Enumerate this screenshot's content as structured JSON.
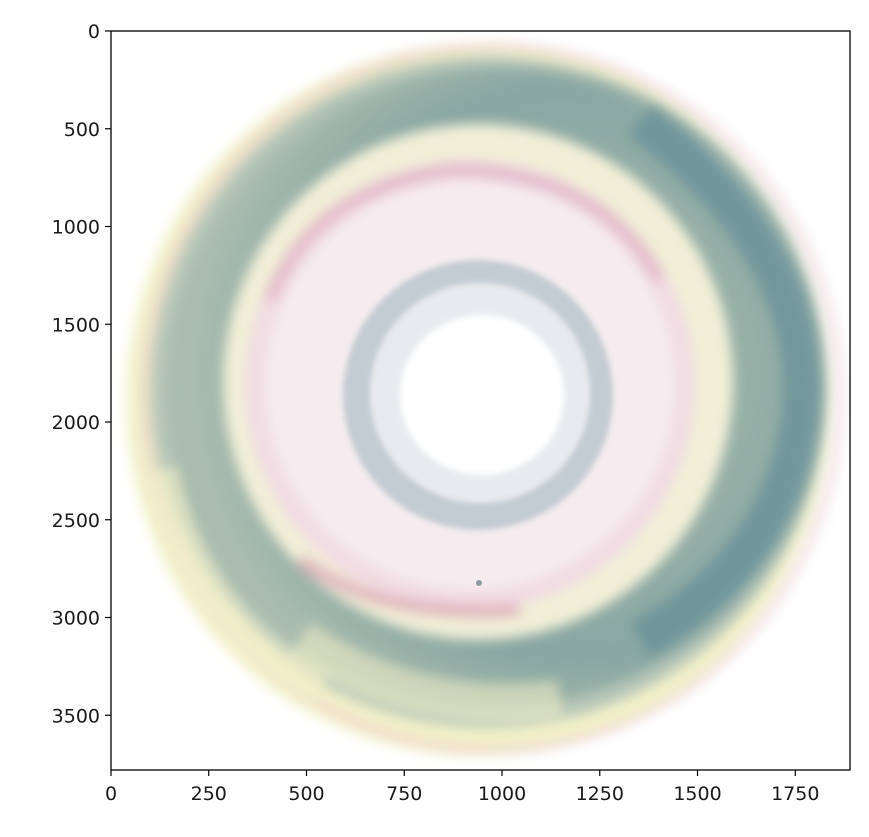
{
  "chart_data": {
    "type": "image",
    "title": "",
    "xlabel": "",
    "ylabel": "",
    "xlim": [
      0,
      1890
    ],
    "ylim": [
      3780,
      0
    ],
    "x_ticks": [
      0,
      250,
      500,
      750,
      1000,
      1250,
      1500,
      1750
    ],
    "y_ticks": [
      0,
      500,
      1000,
      1500,
      2000,
      2500,
      3000,
      3500
    ],
    "x_tick_labels": [
      "0",
      "250",
      "500",
      "750",
      "1000",
      "1250",
      "1500",
      "1750"
    ],
    "y_tick_labels": [
      "0",
      "500",
      "1000",
      "1500",
      "2000",
      "2500",
      "3000",
      "3500"
    ],
    "grid": false,
    "image": {
      "description_colors": {
        "teal": "#4f7f8c",
        "sage": "#a9bcae",
        "cream": "#f2efd8",
        "pale_yellow": "#f3f1c9",
        "pink": "#d9a6bb",
        "blush": "#f1dbe3",
        "blue_gray": "#c3ccd3",
        "white": "#ffffff"
      }
    }
  }
}
